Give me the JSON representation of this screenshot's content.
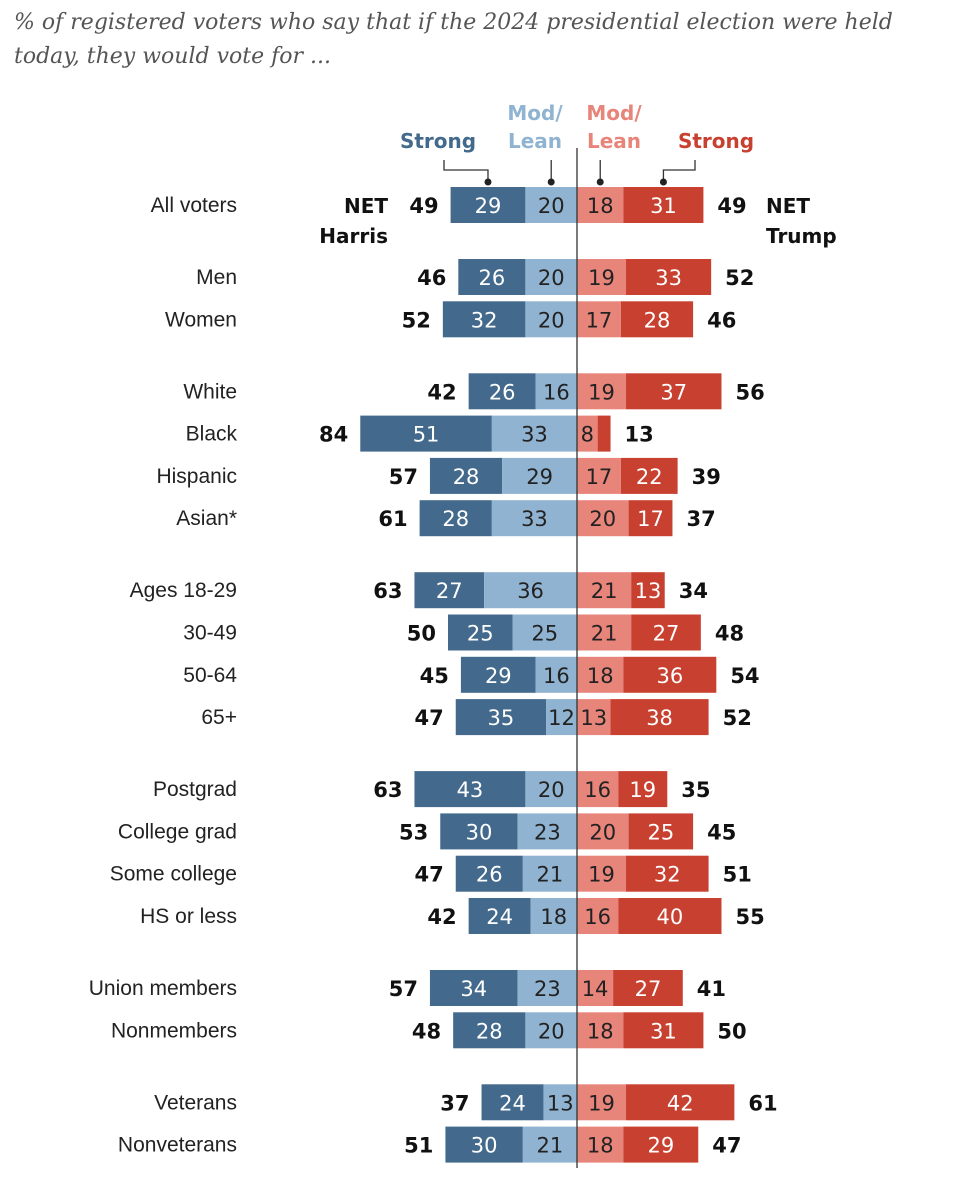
{
  "title": "% of registered voters who say that if the 2024 presidential election were held today, they would vote for ...",
  "chart_data": {
    "type": "bar",
    "orientation": "horizontal diverging stacked",
    "header": {
      "harris_strong": "Strong",
      "harris_lean": "Mod/ Lean",
      "trump_lean": "Mod/ Lean",
      "trump_strong": "Strong"
    },
    "net_labels": {
      "harris": "NET Harris",
      "trump": "NET Trump"
    },
    "colors": {
      "harris_strong": "#436a8c",
      "harris_lean": "#8fb3d0",
      "trump_lean": "#e8857b",
      "trump_strong": "#c8402f"
    },
    "rows": [
      {
        "label": "All voters",
        "harris_strong": 29,
        "harris_lean": 20,
        "harris_net": 49,
        "trump_lean": 18,
        "trump_strong": 31,
        "trump_net": 49,
        "group": 0
      },
      {
        "label": "Men",
        "harris_strong": 26,
        "harris_lean": 20,
        "harris_net": 46,
        "trump_lean": 19,
        "trump_strong": 33,
        "trump_net": 52,
        "group": 1
      },
      {
        "label": "Women",
        "harris_strong": 32,
        "harris_lean": 20,
        "harris_net": 52,
        "trump_lean": 17,
        "trump_strong": 28,
        "trump_net": 46,
        "group": 1
      },
      {
        "label": "White",
        "harris_strong": 26,
        "harris_lean": 16,
        "harris_net": 42,
        "trump_lean": 19,
        "trump_strong": 37,
        "trump_net": 56,
        "group": 2
      },
      {
        "label": "Black",
        "harris_strong": 51,
        "harris_lean": 33,
        "harris_net": 84,
        "trump_lean": 8,
        "trump_strong": 5,
        "trump_net": 13,
        "group": 2
      },
      {
        "label": "Hispanic",
        "harris_strong": 28,
        "harris_lean": 29,
        "harris_net": 57,
        "trump_lean": 17,
        "trump_strong": 22,
        "trump_net": 39,
        "group": 2
      },
      {
        "label": "Asian*",
        "harris_strong": 28,
        "harris_lean": 33,
        "harris_net": 61,
        "trump_lean": 20,
        "trump_strong": 17,
        "trump_net": 37,
        "group": 2
      },
      {
        "label": "Ages 18-29",
        "harris_strong": 27,
        "harris_lean": 36,
        "harris_net": 63,
        "trump_lean": 21,
        "trump_strong": 13,
        "trump_net": 34,
        "group": 3
      },
      {
        "label": "30-49",
        "harris_strong": 25,
        "harris_lean": 25,
        "harris_net": 50,
        "trump_lean": 21,
        "trump_strong": 27,
        "trump_net": 48,
        "group": 3
      },
      {
        "label": "50-64",
        "harris_strong": 29,
        "harris_lean": 16,
        "harris_net": 45,
        "trump_lean": 18,
        "trump_strong": 36,
        "trump_net": 54,
        "group": 3
      },
      {
        "label": "65+",
        "harris_strong": 35,
        "harris_lean": 12,
        "harris_net": 47,
        "trump_lean": 13,
        "trump_strong": 38,
        "trump_net": 52,
        "group": 3
      },
      {
        "label": "Postgrad",
        "harris_strong": 43,
        "harris_lean": 20,
        "harris_net": 63,
        "trump_lean": 16,
        "trump_strong": 19,
        "trump_net": 35,
        "group": 4
      },
      {
        "label": "College grad",
        "harris_strong": 30,
        "harris_lean": 23,
        "harris_net": 53,
        "trump_lean": 20,
        "trump_strong": 25,
        "trump_net": 45,
        "group": 4
      },
      {
        "label": "Some college",
        "harris_strong": 26,
        "harris_lean": 21,
        "harris_net": 47,
        "trump_lean": 19,
        "trump_strong": 32,
        "trump_net": 51,
        "group": 4
      },
      {
        "label": "HS or less",
        "harris_strong": 24,
        "harris_lean": 18,
        "harris_net": 42,
        "trump_lean": 16,
        "trump_strong": 40,
        "trump_net": 55,
        "group": 4
      },
      {
        "label": "Union members",
        "harris_strong": 34,
        "harris_lean": 23,
        "harris_net": 57,
        "trump_lean": 14,
        "trump_strong": 27,
        "trump_net": 41,
        "group": 5
      },
      {
        "label": "Nonmembers",
        "harris_strong": 28,
        "harris_lean": 20,
        "harris_net": 48,
        "trump_lean": 18,
        "trump_strong": 31,
        "trump_net": 50,
        "group": 5
      },
      {
        "label": "Veterans",
        "harris_strong": 24,
        "harris_lean": 13,
        "harris_net": 37,
        "trump_lean": 19,
        "trump_strong": 42,
        "trump_net": 61,
        "group": 6
      },
      {
        "label": "Nonveterans",
        "harris_strong": 30,
        "harris_lean": 21,
        "harris_net": 51,
        "trump_lean": 18,
        "trump_strong": 29,
        "trump_net": 47,
        "group": 6
      }
    ]
  }
}
